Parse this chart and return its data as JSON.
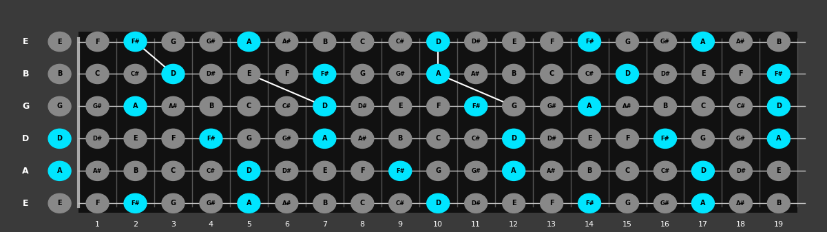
{
  "bg_color": "#3a3a3a",
  "fretboard_bg": "#111111",
  "string_color": "#cccccc",
  "fret_color": "#555555",
  "num_frets": 19,
  "num_strings": 6,
  "string_labels": [
    "E",
    "B",
    "G",
    "D",
    "A",
    "E"
  ],
  "string_tuning": [
    4,
    11,
    7,
    2,
    9,
    4
  ],
  "note_names": [
    "C",
    "C#",
    "D",
    "D#",
    "E",
    "F",
    "F#",
    "G",
    "G#",
    "A",
    "A#",
    "B"
  ],
  "highlight_notes": [
    "D",
    "F#",
    "A"
  ],
  "highlight_color": "#00e5ff",
  "normal_color": "#888888",
  "line_connections": [
    [
      2,
      0,
      3,
      1
    ],
    [
      5,
      1,
      7,
      2
    ],
    [
      10,
      0,
      10,
      1
    ],
    [
      10,
      1,
      12,
      2
    ]
  ]
}
